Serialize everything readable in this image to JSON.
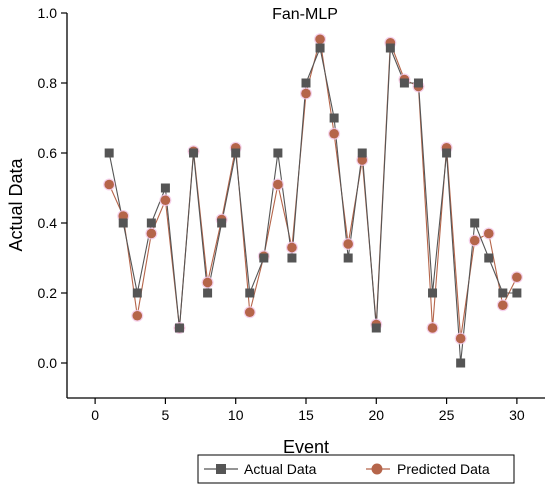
{
  "chart_data": {
    "type": "line",
    "title": "Fan-MLP",
    "xlabel": "Event",
    "ylabel": "Actual Data",
    "xlim": [
      -2,
      32
    ],
    "ylim": [
      -0.1,
      1.0
    ],
    "x_ticks": [
      0,
      5,
      10,
      15,
      20,
      25,
      30
    ],
    "y_ticks": [
      0.0,
      0.2,
      0.4,
      0.6,
      0.8,
      1.0
    ],
    "x_tick_labels": [
      "0",
      "5",
      "10",
      "15",
      "20",
      "25",
      "30"
    ],
    "y_tick_labels": [
      "0.0",
      "0.2",
      "0.4",
      "0.6",
      "0.8",
      "1.0"
    ],
    "legend_position": "bottom",
    "x": [
      1,
      2,
      3,
      4,
      5,
      6,
      7,
      8,
      9,
      10,
      11,
      12,
      13,
      14,
      15,
      16,
      17,
      18,
      19,
      20,
      21,
      22,
      23,
      24,
      25,
      26,
      27,
      28,
      29,
      30
    ],
    "series": [
      {
        "name": "Actual Data",
        "color": "#555555",
        "marker": "square",
        "values": [
          0.6,
          0.4,
          0.2,
          0.4,
          0.5,
          0.1,
          0.6,
          0.2,
          0.4,
          0.6,
          0.2,
          0.3,
          0.6,
          0.3,
          0.8,
          0.9,
          0.7,
          0.3,
          0.6,
          0.1,
          0.9,
          0.8,
          0.8,
          0.2,
          0.6,
          0.0,
          0.4,
          0.3,
          0.2,
          0.2
        ]
      },
      {
        "name": "Predicted Data",
        "color": "#b5654a",
        "marker": "circle",
        "values": [
          0.51,
          0.42,
          0.135,
          0.37,
          0.465,
          0.1,
          0.605,
          0.23,
          0.41,
          0.615,
          0.145,
          0.305,
          0.51,
          0.33,
          0.77,
          0.925,
          0.655,
          0.34,
          0.58,
          0.11,
          0.915,
          0.81,
          0.79,
          0.1,
          0.615,
          0.07,
          0.35,
          0.37,
          0.165,
          0.245
        ]
      }
    ]
  }
}
